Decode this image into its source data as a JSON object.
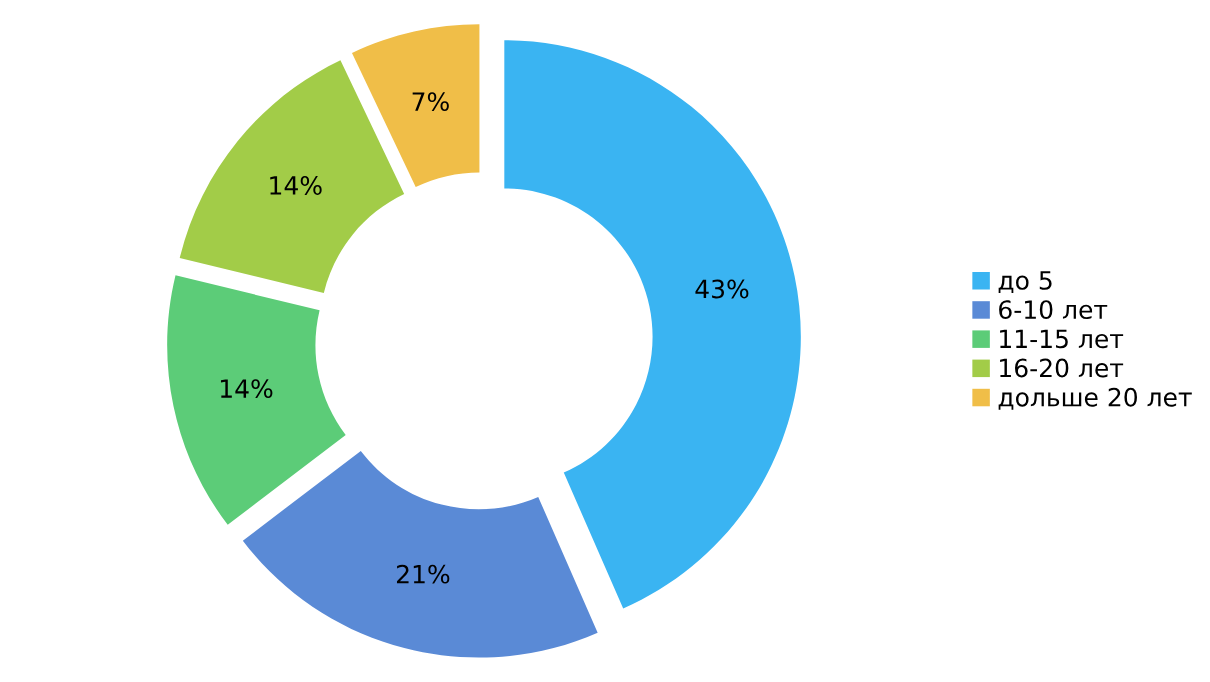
{
  "chart_data": {
    "type": "donut",
    "categories": [
      "до 5",
      "6-10 лет",
      "11-15 лет",
      "16-20 лет",
      "дольше 20 лет"
    ],
    "values": [
      43,
      21,
      14,
      14,
      7
    ],
    "value_labels": [
      "43%",
      "21%",
      "14%",
      "14%",
      "7%"
    ],
    "colors": [
      "#3ab4f2",
      "#5a8ad6",
      "#5ccc78",
      "#a2cc48",
      "#f0be48"
    ],
    "legend": "right"
  }
}
